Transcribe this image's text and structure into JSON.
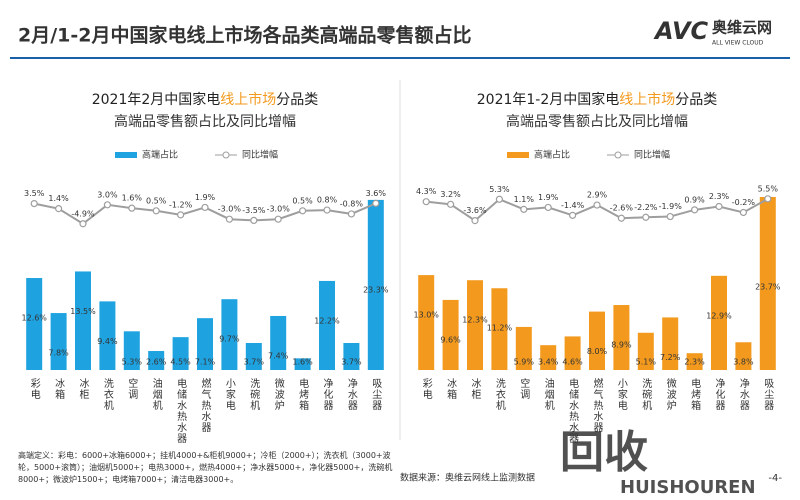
{
  "header": {
    "title": "2月/1-2月中国家电线上市场各品类高端品零售额占比",
    "logo": "AVC",
    "logo_name": "奥维云网",
    "logo_sub": "ALL VIEW CLOUD"
  },
  "chart_data": [
    {
      "type": "bar",
      "title": [
        "2021年2月中国家电",
        "线上市场",
        "分品类"
      ],
      "subtitle": "高端品零售额占比及同比增幅",
      "categories": [
        "彩电",
        "冰箱",
        "冰柜",
        "洗衣机",
        "空调",
        "油烟机",
        "电储水热水器",
        "燃气热水器",
        "小家电",
        "洗碗机",
        "微波炉",
        "电烤箱",
        "净化器",
        "净水器",
        "吸尘器"
      ],
      "series": [
        {
          "name": "高端占比",
          "type": "bar",
          "color": "#1fa2e0",
          "values": [
            12.6,
            7.8,
            13.5,
            9.4,
            5.3,
            2.6,
            4.5,
            7.1,
            9.7,
            3.7,
            7.4,
            1.6,
            12.2,
            3.7,
            23.3
          ],
          "value_labels": [
            "12.6%",
            "7.8%",
            "13.5%",
            "9.4%",
            "5.3%",
            "2.6%",
            "4.5%",
            "7.1%",
            "9.7%",
            "3.7%",
            "7.4%",
            "1.6%",
            "12.2%",
            "3.7%",
            "23.3%"
          ]
        },
        {
          "name": "同比增幅",
          "type": "line",
          "color": "#9e9e9e",
          "values": [
            3.5,
            1.4,
            -4.9,
            3.0,
            1.6,
            0.5,
            -1.2,
            1.9,
            -3.0,
            -3.5,
            -3.0,
            0.5,
            0.8,
            -0.8,
            3.6
          ],
          "value_labels": [
            "3.5%",
            "1.4%",
            "-4.9%",
            "3.0%",
            "1.6%",
            "0.5%",
            "-1.2%",
            "1.9%",
            "-3.0%",
            "-3.5%",
            "-3.0%",
            "0.5%",
            "0.8%",
            "-0.8%",
            "3.6%"
          ]
        }
      ]
    },
    {
      "type": "bar",
      "title": [
        "2021年1-2月中国家电",
        "线上市场",
        "分品类"
      ],
      "subtitle": "高端品零售额占比及同比增幅",
      "categories": [
        "彩电",
        "冰箱",
        "冰柜",
        "洗衣机",
        "空调",
        "油烟机",
        "电储水热水器",
        "燃气热水器",
        "小家电",
        "洗碗机",
        "微波炉",
        "电烤箱",
        "净化器",
        "净水器",
        "吸尘器"
      ],
      "series": [
        {
          "name": "高端占比",
          "type": "bar",
          "color": "#f39a1e",
          "values": [
            13.0,
            9.6,
            12.3,
            11.2,
            5.9,
            3.4,
            4.6,
            8.0,
            8.9,
            5.1,
            7.2,
            2.3,
            12.9,
            3.8,
            23.7
          ],
          "value_labels": [
            "13.0%",
            "9.6%",
            "12.3%",
            "11.2%",
            "5.9%",
            "3.4%",
            "4.6%",
            "8.0%",
            "8.9%",
            "5.1%",
            "7.2%",
            "2.3%",
            "12.9%",
            "3.8%",
            "23.7%"
          ]
        },
        {
          "name": "同比增幅",
          "type": "line",
          "color": "#9e9e9e",
          "values": [
            4.3,
            3.2,
            -3.6,
            5.3,
            1.1,
            1.9,
            -1.4,
            2.9,
            -2.6,
            -2.2,
            -1.9,
            0.9,
            2.3,
            -0.2,
            5.5
          ],
          "value_labels": [
            "4.3%",
            "3.2%",
            "-3.6%",
            "5.3%",
            "1.1%",
            "1.9%",
            "-1.4%",
            "2.9%",
            "-2.6%",
            "-2.2%",
            "-1.9%",
            "0.9%",
            "2.3%",
            "-0.2%",
            "5.5%"
          ]
        }
      ]
    }
  ],
  "footer": {
    "note": "高端定义：彩电：6000+冰箱6000+；挂机4000+&柜机9000+；冷柜（2000+）；洗衣机（3000+波轮，5000+滚筒）；油烟机5000+；电热3000+，燃热4000+；净水器5000+，净化器5000+，洗碗机8000+；微波炉1500+；电烤箱7000+；清洁电器3000+。",
    "source": "数据来源：奥维云网线上监测数据",
    "page": "-4-"
  },
  "watermark": {
    "text": "回收",
    "sub": "HUISHOUREN"
  }
}
